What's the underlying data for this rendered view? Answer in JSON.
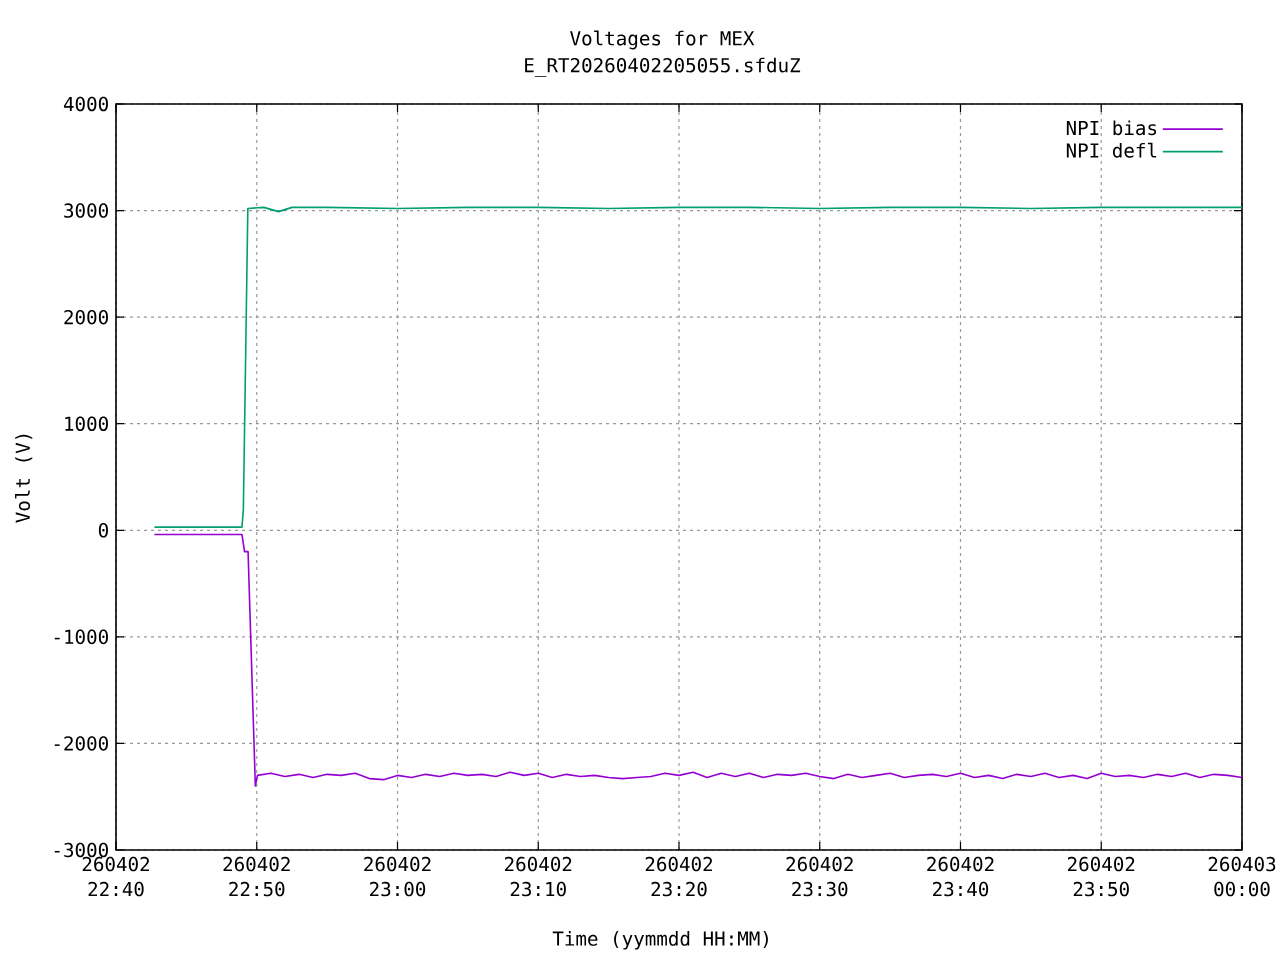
{
  "chart_data": {
    "type": "line",
    "title": "Voltages for MEX",
    "subtitle": "E_RT20260402205055.sfduZ",
    "xlabel": "Time (yymmdd HH:MM)",
    "ylabel": "Volt (V)",
    "xlim": [
      "2026-04-02T22:40",
      "2026-04-03T00:00"
    ],
    "xticks": [
      {
        "value": "2026-04-02T22:40",
        "label": "260402 22:40"
      },
      {
        "value": "2026-04-02T22:50",
        "label": "260402 22:50"
      },
      {
        "value": "2026-04-02T23:00",
        "label": "260402 23:00"
      },
      {
        "value": "2026-04-02T23:10",
        "label": "260402 23:10"
      },
      {
        "value": "2026-04-02T23:20",
        "label": "260402 23:20"
      },
      {
        "value": "2026-04-02T23:30",
        "label": "260402 23:30"
      },
      {
        "value": "2026-04-02T23:40",
        "label": "260402 23:40"
      },
      {
        "value": "2026-04-02T23:50",
        "label": "260402 23:50"
      },
      {
        "value": "2026-04-03T00:00",
        "label": "260403 00:00"
      }
    ],
    "ylim": [
      -3000,
      4000
    ],
    "yticks": [
      -3000,
      -2000,
      -1000,
      0,
      1000,
      2000,
      3000,
      4000
    ],
    "grid": true,
    "legend": "top right",
    "series": [
      {
        "name": "NPI bias",
        "color": "#9400d3",
        "x": [
          "2026-04-02T22:42:44",
          "2026-04-02T22:48:57",
          "2026-04-02T22:49:08",
          "2026-04-02T22:49:23",
          "2026-04-02T22:49:54",
          "2026-04-02T22:50:03",
          "2026-04-02T22:51",
          "2026-04-02T22:52",
          "2026-04-02T22:53",
          "2026-04-02T22:54",
          "2026-04-02T22:55",
          "2026-04-02T22:56",
          "2026-04-02T22:57",
          "2026-04-02T22:58",
          "2026-04-02T22:59",
          "2026-04-02T23:00",
          "2026-04-02T23:01",
          "2026-04-02T23:02",
          "2026-04-02T23:03",
          "2026-04-02T23:04",
          "2026-04-02T23:05",
          "2026-04-02T23:06",
          "2026-04-02T23:07",
          "2026-04-02T23:08",
          "2026-04-02T23:09",
          "2026-04-02T23:10",
          "2026-04-02T23:11",
          "2026-04-02T23:12",
          "2026-04-02T23:13",
          "2026-04-02T23:14",
          "2026-04-02T23:15",
          "2026-04-02T23:16",
          "2026-04-02T23:17",
          "2026-04-02T23:18",
          "2026-04-02T23:19",
          "2026-04-02T23:20",
          "2026-04-02T23:21",
          "2026-04-02T23:22",
          "2026-04-02T23:23",
          "2026-04-02T23:24",
          "2026-04-02T23:25",
          "2026-04-02T23:26",
          "2026-04-02T23:27",
          "2026-04-02T23:28",
          "2026-04-02T23:29",
          "2026-04-02T23:30",
          "2026-04-02T23:31",
          "2026-04-02T23:32",
          "2026-04-02T23:33",
          "2026-04-02T23:34",
          "2026-04-02T23:35",
          "2026-04-02T23:36",
          "2026-04-02T23:37",
          "2026-04-02T23:38",
          "2026-04-02T23:39",
          "2026-04-02T23:40",
          "2026-04-02T23:41",
          "2026-04-02T23:42",
          "2026-04-02T23:43",
          "2026-04-02T23:44",
          "2026-04-02T23:45",
          "2026-04-02T23:46",
          "2026-04-02T23:47",
          "2026-04-02T23:48",
          "2026-04-02T23:49",
          "2026-04-02T23:50",
          "2026-04-02T23:51",
          "2026-04-02T23:52",
          "2026-04-02T23:53",
          "2026-04-02T23:54",
          "2026-04-02T23:55",
          "2026-04-02T23:56",
          "2026-04-02T23:57",
          "2026-04-02T23:58",
          "2026-04-02T23:59",
          "2026-04-03T00:00"
        ],
        "values": [
          -40,
          -40,
          -200,
          -200,
          -2400,
          -2300,
          -2280,
          -2310,
          -2290,
          -2320,
          -2290,
          -2300,
          -2280,
          -2330,
          -2340,
          -2300,
          -2320,
          -2290,
          -2310,
          -2280,
          -2300,
          -2290,
          -2310,
          -2270,
          -2300,
          -2280,
          -2320,
          -2290,
          -2310,
          -2300,
          -2320,
          -2330,
          -2320,
          -2310,
          -2280,
          -2300,
          -2270,
          -2320,
          -2280,
          -2310,
          -2280,
          -2320,
          -2290,
          -2300,
          -2280,
          -2310,
          -2330,
          -2290,
          -2320,
          -2300,
          -2280,
          -2320,
          -2300,
          -2290,
          -2310,
          -2280,
          -2320,
          -2300,
          -2330,
          -2290,
          -2310,
          -2280,
          -2320,
          -2300,
          -2330,
          -2280,
          -2310,
          -2300,
          -2320,
          -2290,
          -2310,
          -2280,
          -2320,
          -2290,
          -2300,
          -2320
        ]
      },
      {
        "name": "NPI defl",
        "color": "#009e73",
        "x": [
          "2026-04-02T22:42:44",
          "2026-04-02T22:48:57",
          "2026-04-02T22:49:03",
          "2026-04-02T22:49:22",
          "2026-04-02T22:50:30",
          "2026-04-02T22:51:33",
          "2026-04-02T22:52:30",
          "2026-04-02T22:55",
          "2026-04-02T23:00",
          "2026-04-02T23:05",
          "2026-04-02T23:10",
          "2026-04-02T23:15",
          "2026-04-02T23:20",
          "2026-04-02T23:25",
          "2026-04-02T23:30",
          "2026-04-02T23:35",
          "2026-04-02T23:40",
          "2026-04-02T23:45",
          "2026-04-02T23:50",
          "2026-04-02T23:55",
          "2026-04-03T00:00"
        ],
        "values": [
          30,
          30,
          200,
          3020,
          3030,
          2990,
          3030,
          3030,
          3020,
          3030,
          3030,
          3020,
          3030,
          3030,
          3020,
          3030,
          3030,
          3020,
          3030,
          3030,
          3030
        ]
      }
    ]
  }
}
